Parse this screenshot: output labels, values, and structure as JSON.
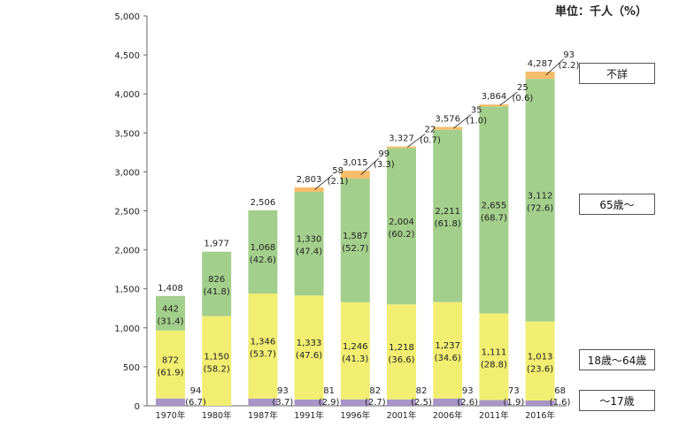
{
  "unit_label": "単位：千人（%）",
  "legend": {
    "unknown": "不詳",
    "age65plus": "65歳～",
    "age18to64": "18歳～64歳",
    "age0to17": "～17歳"
  },
  "colors": {
    "age0to17": "#a894c6",
    "age18to64": "#f2ee72",
    "age65plus": "#a3cf8c",
    "unknown": "#f7bd6a"
  },
  "chart_data": {
    "type": "bar",
    "stacked": true,
    "ylim": [
      0,
      5000
    ],
    "yticks": [
      "0",
      "500",
      "1,000",
      "1,500",
      "2,000",
      "2,500",
      "3,000",
      "3,500",
      "4,000",
      "4,500",
      "5,000"
    ],
    "categories": [
      "1970年",
      "1980年",
      "1987年",
      "1991年",
      "1996年",
      "2001年",
      "2006年",
      "2011年",
      "2016年"
    ],
    "totals": [
      "1,408",
      "1,977",
      "2,506",
      "2,803",
      "3,015",
      "3,327",
      "3,576",
      "3,864",
      "4,287"
    ],
    "series": [
      {
        "name": "～17歳",
        "values": [
          94,
          0,
          93,
          81,
          82,
          82,
          93,
          73,
          68
        ],
        "labels": [
          "94",
          "",
          "93",
          "81",
          "82",
          "82",
          "93",
          "73",
          "68"
        ],
        "pct": [
          "(6.7)",
          "",
          "(3.7)",
          "(2.9)",
          "(2.7)",
          "(2.5)",
          "(2.6)",
          "(1.9)",
          "(1.6)"
        ]
      },
      {
        "name": "18歳～64歳",
        "values": [
          872,
          1150,
          1346,
          1333,
          1246,
          1218,
          1237,
          1111,
          1013
        ],
        "labels": [
          "872",
          "1,150",
          "1,346",
          "1,333",
          "1,246",
          "1,218",
          "1,237",
          "1,111",
          "1,013"
        ],
        "pct": [
          "(61.9)",
          "(58.2)",
          "(53.7)",
          "(47.6)",
          "(41.3)",
          "(36.6)",
          "(34.6)",
          "(28.8)",
          "(23.6)"
        ]
      },
      {
        "name": "65歳～",
        "values": [
          442,
          826,
          1068,
          1330,
          1587,
          2004,
          2211,
          2655,
          3112
        ],
        "labels": [
          "442",
          "826",
          "1,068",
          "1,330",
          "1,587",
          "2,004",
          "2,211",
          "2,655",
          "3,112"
        ],
        "pct": [
          "(31.4)",
          "(41.8)",
          "(42.6)",
          "(47.4)",
          "(52.7)",
          "(60.2)",
          "(61.8)",
          "(68.7)",
          "(72.6)"
        ]
      },
      {
        "name": "不詳",
        "values": [
          0,
          0,
          0,
          58,
          99,
          22,
          35,
          25,
          93
        ],
        "labels": [
          "",
          "",
          "",
          "58",
          "99",
          "22",
          "35",
          "25",
          "93"
        ],
        "pct": [
          "",
          "",
          "",
          "(2.1)",
          "(3.3)",
          "(0.7)",
          "(1.0)",
          "(0.6)",
          "(2.2)"
        ]
      }
    ]
  }
}
